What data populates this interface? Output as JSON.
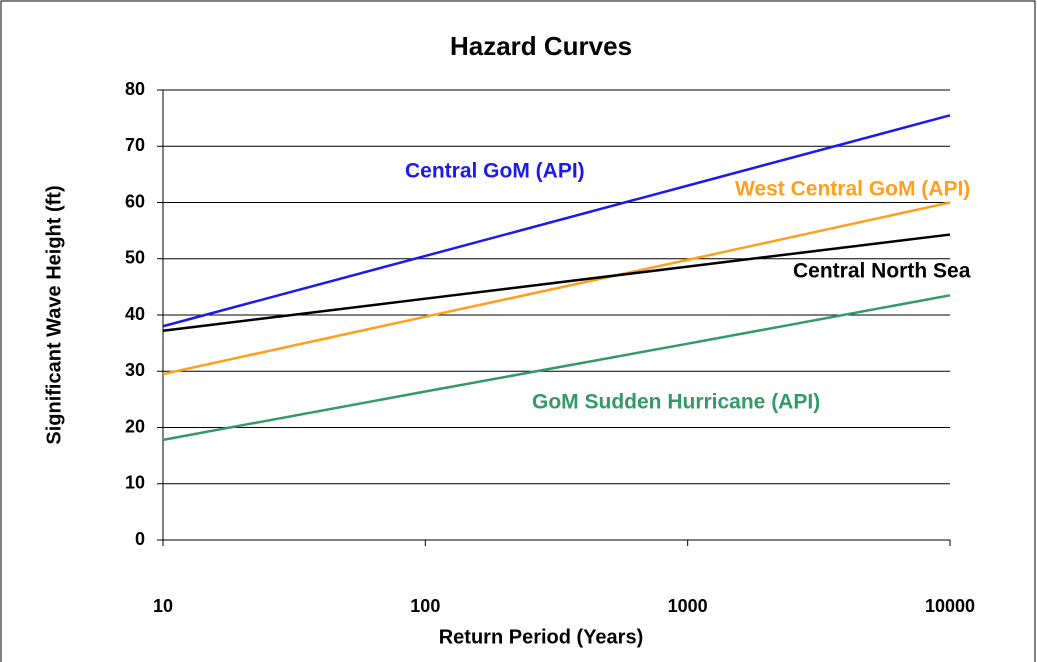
{
  "chart_data": {
    "type": "line",
    "title": "Hazard Curves",
    "x_label": "Return Period (Years)",
    "y_label": "Significant Wave Height (ft)",
    "x": [
      10,
      100,
      1000,
      10000
    ],
    "xscale": "log",
    "xlim": [
      10,
      10000
    ],
    "xticks": [
      10,
      100,
      1000,
      10000
    ],
    "ylim": [
      0,
      80
    ],
    "yticks": [
      0,
      10,
      20,
      30,
      40,
      50,
      60,
      70,
      80
    ],
    "grid": true,
    "series": [
      {
        "name": "Central GoM (API)",
        "color": "#1a1aee",
        "values": [
          38,
          50.5,
          63,
          75.5
        ]
      },
      {
        "name": "West Central GoM (API)",
        "color": "#ff9f1c",
        "values": [
          29.5,
          39.7,
          49.8,
          60
        ]
      },
      {
        "name": "Central North Sea",
        "color": "#000000",
        "values": [
          37.2,
          42.9,
          48.6,
          54.3
        ]
      },
      {
        "name": "GoM Sudden Hurricane (API)",
        "color": "#339966",
        "values": [
          17.8,
          26.4,
          34.9,
          43.5
        ]
      }
    ]
  }
}
